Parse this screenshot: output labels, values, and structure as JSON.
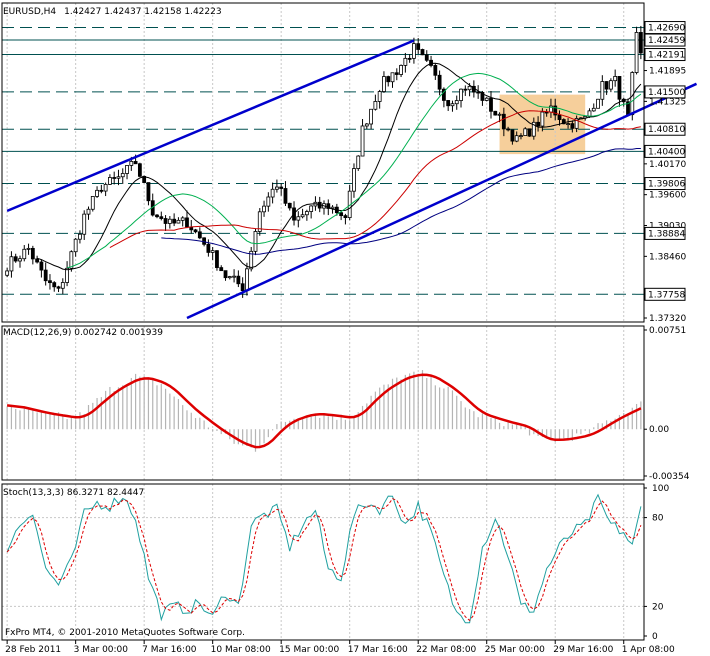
{
  "window": {
    "title": "EURUSD,H4",
    "ohlc": "1.42427 1.42437 1.42158 1.42223",
    "footer": "FxPro MT4, © 2001-2010 MetaQuotes Software Corp."
  },
  "colors": {
    "candle": "#000000",
    "trendline": "#0000cc",
    "ma_fast": "#00b050",
    "ma_mid": "#000000",
    "ma_slow": "#cc0000",
    "ma_long": "#000080",
    "level": "#005050",
    "zone": "#f5c78a",
    "macd_hist": "#b4b4b4",
    "macd_signal": "#dd0000",
    "stoch_main": "#20a0a0",
    "stoch_signal": "#dd0000"
  },
  "chart_data": [
    {
      "type": "candlestick",
      "title": "EURUSD,H4",
      "ylim": [
        1.3732,
        1.4307
      ],
      "price_ticks": [
        "1.42690",
        "1.42459",
        "1.42191",
        "1.41895",
        "1.41500",
        "1.41325",
        "1.40810",
        "1.40400",
        "1.40170",
        "1.39806",
        "1.39600",
        "1.39030",
        "1.38884",
        "1.38460",
        "1.37758",
        "1.37320"
      ],
      "levels": [
        {
          "value": 1.4269,
          "label": "1.42690",
          "style": "dash",
          "boxed": true
        },
        {
          "value": 1.42459,
          "label": "1.42459",
          "style": "solid",
          "boxed": true
        },
        {
          "value": 1.42191,
          "label": "1.42191",
          "style": "solid",
          "boxed": true
        },
        {
          "value": 1.415,
          "label": "1.41500",
          "style": "dash",
          "boxed": true
        },
        {
          "value": 1.4081,
          "label": "1.40810",
          "style": "dash",
          "boxed": true
        },
        {
          "value": 1.404,
          "label": "1.40400",
          "style": "solid",
          "boxed": true
        },
        {
          "value": 1.39806,
          "label": "1.39806",
          "style": "dash",
          "boxed": true
        },
        {
          "value": 1.38884,
          "label": "1.38884",
          "style": "dash",
          "boxed": true
        },
        {
          "value": 1.37758,
          "label": "1.37758",
          "style": "dash",
          "boxed": true
        }
      ],
      "x_labels": [
        "28 Feb 2011",
        "3 Mar 00:00",
        "7 Mar 16:00",
        "10 Mar 08:00",
        "15 Mar 00:00",
        "17 Mar 16:00",
        "22 Mar 08:00",
        "25 Mar 00:00",
        "29 Mar 16:00",
        "1 Apr 08:00"
      ],
      "x_label_bars": [
        0,
        16,
        32,
        48,
        64,
        80,
        96,
        112,
        128,
        144
      ],
      "bars_count": 149,
      "key_closes": [
        [
          0,
          1.383
        ],
        [
          5,
          1.386
        ],
        [
          9,
          1.38
        ],
        [
          12,
          1.378
        ],
        [
          18,
          1.392
        ],
        [
          22,
          1.3975
        ],
        [
          26,
          1.399
        ],
        [
          30,
          1.402
        ],
        [
          34,
          1.393
        ],
        [
          38,
          1.3905
        ],
        [
          42,
          1.391
        ],
        [
          47,
          1.386
        ],
        [
          51,
          1.381
        ],
        [
          55,
          1.379
        ],
        [
          59,
          1.393
        ],
        [
          63,
          1.398
        ],
        [
          67,
          1.391
        ],
        [
          71,
          1.3935
        ],
        [
          75,
          1.394
        ],
        [
          79,
          1.392
        ],
        [
          83,
          1.408
        ],
        [
          87,
          1.416
        ],
        [
          91,
          1.419
        ],
        [
          95,
          1.423
        ],
        [
          99,
          1.419
        ],
        [
          103,
          1.413
        ],
        [
          107,
          1.416
        ],
        [
          111,
          1.414
        ],
        [
          115,
          1.41
        ],
        [
          119,
          1.406
        ],
        [
          123,
          1.4085
        ],
        [
          127,
          1.412
        ],
        [
          131,
          1.409
        ],
        [
          135,
          1.41
        ],
        [
          139,
          1.416
        ],
        [
          142,
          1.417
        ],
        [
          145,
          1.41
        ],
        [
          147,
          1.425
        ],
        [
          148,
          1.4222
        ]
      ],
      "trend_lines": [
        {
          "from": [
            0,
            1.393
          ],
          "to": [
            95,
            1.4245
          ]
        },
        {
          "from": [
            42,
            1.3732
          ],
          "to": [
            161,
            1.4165
          ]
        }
      ],
      "zone": {
        "x": [
          115,
          135
        ],
        "y": [
          1.4035,
          1.4145
        ]
      }
    },
    {
      "type": "histogram+line",
      "title": "MACD(12,26,9) 0.002742 0.001939",
      "ylim": [
        -0.00354,
        0.00751
      ],
      "tick_labels": [
        "0.00751",
        "0.00",
        "-0.00354"
      ],
      "key_points": [
        [
          0,
          0.0018
        ],
        [
          8,
          0.0012
        ],
        [
          16,
          0.0008
        ],
        [
          24,
          0.003
        ],
        [
          30,
          0.004
        ],
        [
          36,
          0.0034
        ],
        [
          42,
          0.0015
        ],
        [
          48,
          0.0
        ],
        [
          54,
          -0.0012
        ],
        [
          58,
          -0.0015
        ],
        [
          64,
          0.0005
        ],
        [
          70,
          0.0012
        ],
        [
          76,
          0.001
        ],
        [
          80,
          0.0008
        ],
        [
          86,
          0.0028
        ],
        [
          92,
          0.004
        ],
        [
          97,
          0.0042
        ],
        [
          103,
          0.003
        ],
        [
          109,
          0.0012
        ],
        [
          115,
          0.0006
        ],
        [
          121,
          0.0001
        ],
        [
          124,
          -0.0008
        ],
        [
          129,
          -0.0008
        ],
        [
          135,
          -0.0004
        ],
        [
          141,
          0.0008
        ],
        [
          148,
          0.0019
        ]
      ]
    },
    {
      "type": "line",
      "title": "Stoch(13,3,3) 86.3271 82.4447",
      "ylim": [
        0,
        100
      ],
      "tick_labels": [
        "100",
        "80",
        "20",
        "0"
      ],
      "key_points": [
        [
          0,
          60
        ],
        [
          3,
          75
        ],
        [
          6,
          85
        ],
        [
          9,
          45
        ],
        [
          12,
          35
        ],
        [
          15,
          50
        ],
        [
          18,
          82
        ],
        [
          21,
          90
        ],
        [
          24,
          88
        ],
        [
          27,
          95
        ],
        [
          30,
          80
        ],
        [
          33,
          40
        ],
        [
          36,
          15
        ],
        [
          39,
          20
        ],
        [
          42,
          18
        ],
        [
          45,
          22
        ],
        [
          48,
          12
        ],
        [
          51,
          30
        ],
        [
          54,
          20
        ],
        [
          57,
          75
        ],
        [
          60,
          82
        ],
        [
          63,
          85
        ],
        [
          66,
          60
        ],
        [
          69,
          75
        ],
        [
          72,
          85
        ],
        [
          75,
          45
        ],
        [
          78,
          40
        ],
        [
          81,
          82
        ],
        [
          84,
          90
        ],
        [
          87,
          86
        ],
        [
          90,
          95
        ],
        [
          93,
          75
        ],
        [
          96,
          88
        ],
        [
          99,
          70
        ],
        [
          102,
          40
        ],
        [
          105,
          15
        ],
        [
          108,
          12
        ],
        [
          111,
          60
        ],
        [
          114,
          80
        ],
        [
          117,
          55
        ],
        [
          120,
          20
        ],
        [
          123,
          18
        ],
        [
          126,
          45
        ],
        [
          129,
          60
        ],
        [
          132,
          70
        ],
        [
          135,
          75
        ],
        [
          138,
          92
        ],
        [
          141,
          75
        ],
        [
          144,
          70
        ],
        [
          146,
          60
        ],
        [
          148,
          86
        ]
      ]
    }
  ]
}
